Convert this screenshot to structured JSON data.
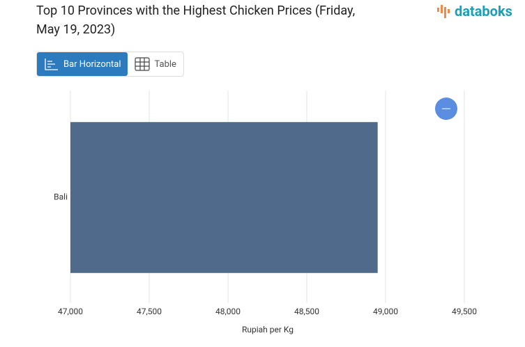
{
  "logo": "databoks",
  "tabs": [
    "Bar Horizontal",
    "Table"
  ],
  "chart_data": {
    "type": "bar",
    "orientation": "horizontal",
    "title": "Top 10 Provinces with the Highest Chicken Prices (Friday, May 19, 2023)",
    "categories": [
      "Bali"
    ],
    "values": [
      48950
    ],
    "color": "#4f6a8a",
    "xlabel": "Rupiah per Kg",
    "xlim": [
      47000,
      49500
    ],
    "xticks": [
      {
        "value": 47000,
        "label": "47,000"
      },
      {
        "value": 47500,
        "label": "47,500"
      },
      {
        "value": 48000,
        "label": "48,000"
      },
      {
        "value": 48500,
        "label": "48,500"
      },
      {
        "value": 49000,
        "label": "49,000"
      },
      {
        "value": 49500,
        "label": "49,500"
      }
    ],
    "grid": true
  }
}
